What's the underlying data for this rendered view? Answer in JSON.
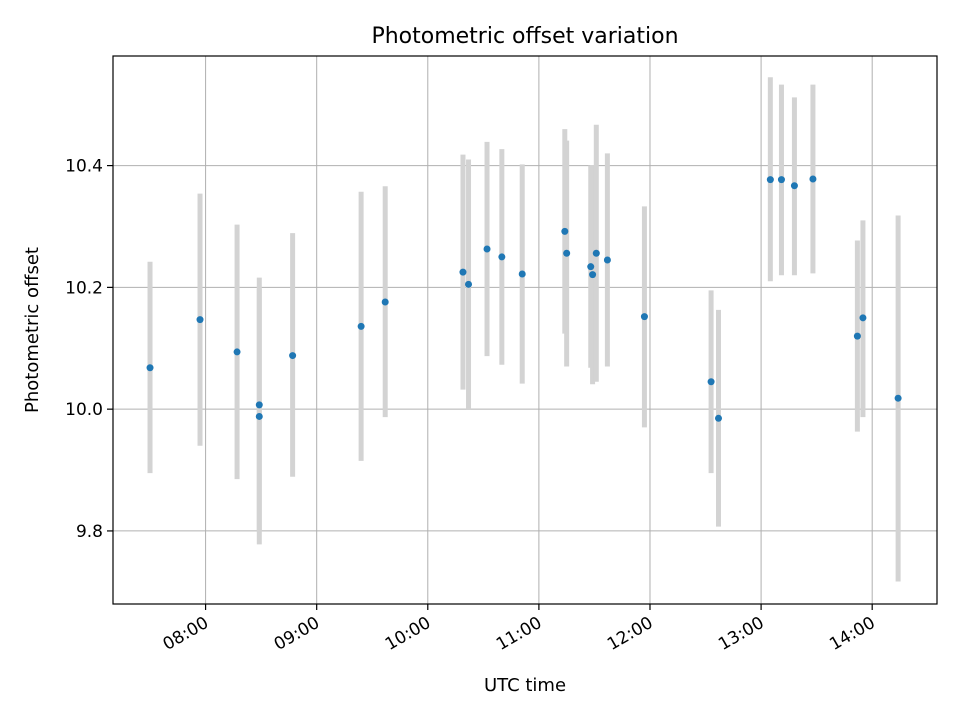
{
  "colors": {
    "marker": "#1f77b4",
    "errorbar": "#d3d3d3",
    "grid": "#b0b0b0",
    "axes": "#000000"
  },
  "chart_data": {
    "type": "scatter",
    "title": "Photometric offset variation",
    "xlabel": "UTC time",
    "ylabel": "Photometric offset",
    "xlim": [
      "07:10",
      "14:35"
    ],
    "ylim": [
      9.68,
      10.58
    ],
    "grid": true,
    "legend": "none",
    "xticks": [
      "08:00",
      "09:00",
      "10:00",
      "11:00",
      "12:00",
      "13:00",
      "14:00"
    ],
    "yticks": [
      "9.8",
      "10.0",
      "10.2",
      "10.4"
    ],
    "series": [
      {
        "marker": "dot",
        "error_bars": "vertical",
        "points": [
          {
            "x": "07:30",
            "y": 10.068,
            "lo": 9.895,
            "hi": 10.242
          },
          {
            "x": "07:57",
            "y": 10.147,
            "lo": 9.94,
            "hi": 10.354
          },
          {
            "x": "08:17",
            "y": 10.094,
            "lo": 9.885,
            "hi": 10.303
          },
          {
            "x": "08:29",
            "y": 10.007,
            "lo": 9.8,
            "hi": 10.216
          },
          {
            "x": "08:29",
            "y": 9.988,
            "lo": 9.778,
            "hi": 10.198
          },
          {
            "x": "08:47",
            "y": 10.088,
            "lo": 9.889,
            "hi": 10.289
          },
          {
            "x": "09:24",
            "y": 10.136,
            "lo": 9.915,
            "hi": 10.357
          },
          {
            "x": "09:37",
            "y": 10.176,
            "lo": 9.987,
            "hi": 10.366
          },
          {
            "x": "10:19",
            "y": 10.225,
            "lo": 10.032,
            "hi": 10.418
          },
          {
            "x": "10:22",
            "y": 10.205,
            "lo": 10.0,
            "hi": 10.41
          },
          {
            "x": "10:32",
            "y": 10.263,
            "lo": 10.087,
            "hi": 10.439
          },
          {
            "x": "10:40",
            "y": 10.25,
            "lo": 10.073,
            "hi": 10.427
          },
          {
            "x": "10:51",
            "y": 10.222,
            "lo": 10.042,
            "hi": 10.402
          },
          {
            "x": "11:14",
            "y": 10.292,
            "lo": 10.124,
            "hi": 10.46
          },
          {
            "x": "11:15",
            "y": 10.256,
            "lo": 10.07,
            "hi": 10.441
          },
          {
            "x": "11:28",
            "y": 10.234,
            "lo": 10.068,
            "hi": 10.4
          },
          {
            "x": "11:29",
            "y": 10.221,
            "lo": 10.041,
            "hi": 10.401
          },
          {
            "x": "11:31",
            "y": 10.256,
            "lo": 10.045,
            "hi": 10.467
          },
          {
            "x": "11:37",
            "y": 10.245,
            "lo": 10.07,
            "hi": 10.42
          },
          {
            "x": "11:57",
            "y": 10.152,
            "lo": 9.97,
            "hi": 10.333
          },
          {
            "x": "12:33",
            "y": 10.045,
            "lo": 9.895,
            "hi": 10.195
          },
          {
            "x": "12:37",
            "y": 9.985,
            "lo": 9.807,
            "hi": 10.163
          },
          {
            "x": "13:05",
            "y": 10.377,
            "lo": 10.21,
            "hi": 10.545
          },
          {
            "x": "13:11",
            "y": 10.377,
            "lo": 10.22,
            "hi": 10.533
          },
          {
            "x": "13:18",
            "y": 10.367,
            "lo": 10.22,
            "hi": 10.512
          },
          {
            "x": "13:28",
            "y": 10.378,
            "lo": 10.223,
            "hi": 10.533
          },
          {
            "x": "13:52",
            "y": 10.12,
            "lo": 9.963,
            "hi": 10.277
          },
          {
            "x": "13:55",
            "y": 10.15,
            "lo": 9.987,
            "hi": 10.31
          },
          {
            "x": "14:14",
            "y": 10.018,
            "lo": 9.717,
            "hi": 10.318
          }
        ]
      }
    ]
  }
}
